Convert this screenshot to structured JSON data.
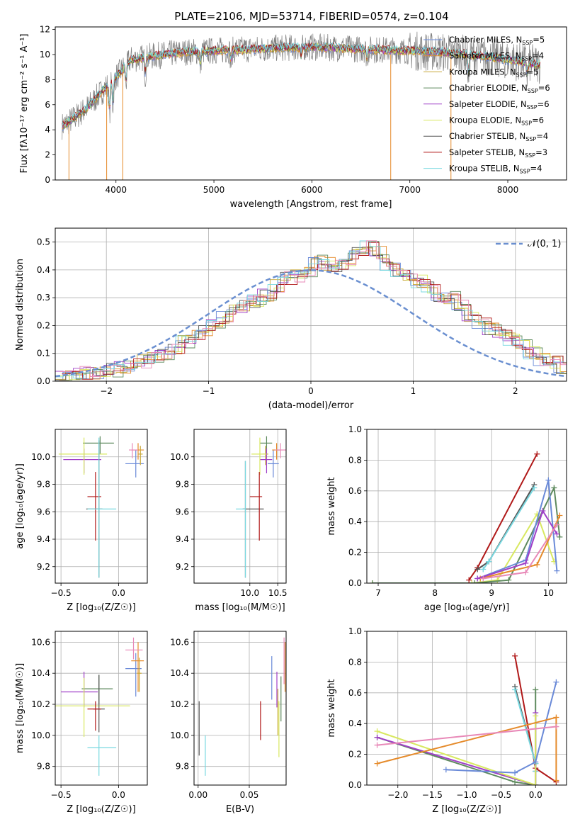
{
  "figure": {
    "title": "PLATE=2106, MJD=53714, FIBERID=0574, z=0.104"
  },
  "colors": {
    "chabrier_miles": "#6a8ad8",
    "salpeter_miles": "#e58a2a",
    "kroupa_miles": "#c8a838",
    "chabrier_elodie": "#5e8a5e",
    "salpeter_elodie": "#a040c8",
    "kroupa_elodie": "#d8e860",
    "chabrier_stelib": "#555555",
    "salpeter_stelib": "#b01818",
    "kroupa_stelib": "#78d8e0",
    "pink": "#e889b8",
    "data": "#808080",
    "grid": "#b0b0b0",
    "gauss": "#6a8fd0"
  },
  "chart_data": [
    {
      "id": "spectrum",
      "type": "line",
      "title": "PLATE=2106, MJD=53714, FIBERID=0574, z=0.104",
      "xlabel": "wavelength [Angstrom, rest frame]",
      "ylabel": "Flux [fλ10⁻¹⁷ erg cm⁻² s⁻¹ A⁻¹]",
      "xlim": [
        3380,
        8600
      ],
      "ylim": [
        0,
        12.2
      ],
      "xticks": [
        4000,
        5000,
        6000,
        7000,
        8000
      ],
      "yticks": [
        0,
        2,
        4,
        6,
        8,
        10,
        12
      ],
      "grid": false,
      "legend": "right",
      "continuum": {
        "x": [
          3450,
          3550,
          3700,
          3850,
          4000,
          4150,
          4400,
          4700,
          5000,
          5300,
          5600,
          6000,
          6300,
          6600,
          7000,
          7300,
          7600,
          8000,
          8300
        ],
        "y": [
          4.3,
          4.8,
          5.7,
          7.0,
          8.2,
          9.6,
          9.9,
          10.2,
          10.3,
          10.4,
          10.5,
          10.6,
          10.5,
          10.4,
          10.3,
          10.2,
          10.0,
          9.6,
          9.2
        ]
      },
      "series": [
        {
          "name": "Chabrier MILES, N",
          "sub": "SSP",
          "suffix": "=5"
        },
        {
          "name": "Salpeter MILES, N",
          "sub": "SSP",
          "suffix": "=4"
        },
        {
          "name": "Kroupa MILES, N",
          "sub": "SSP",
          "suffix": "=5"
        },
        {
          "name": "Chabrier ELODIE, N",
          "sub": "SSP",
          "suffix": "=6"
        },
        {
          "name": "Salpeter ELODIE, N",
          "sub": "SSP",
          "suffix": "=6"
        },
        {
          "name": "Kroupa ELODIE, N",
          "sub": "SSP",
          "suffix": "=6"
        },
        {
          "name": "Chabrier STELIB, N",
          "sub": "SSP",
          "suffix": "=4"
        },
        {
          "name": "Salpeter STELIB, N",
          "sub": "SSP",
          "suffix": "=3"
        },
        {
          "name": "Kroupa STELIB, N",
          "sub": "SSP",
          "suffix": "=4"
        }
      ]
    },
    {
      "id": "residuals",
      "type": "line",
      "xlabel": "(data-model)/error",
      "ylabel": "Normed distribution",
      "xlim": [
        -2.5,
        2.5
      ],
      "ylim": [
        0,
        0.55
      ],
      "xticks": [
        -2,
        -1,
        0,
        1,
        2
      ],
      "yticks": [
        0.0,
        0.1,
        0.2,
        0.3,
        0.4,
        0.5
      ],
      "grid": true,
      "legend": "top-right",
      "gaussian_label": "𝒩(0, 1)",
      "bin_width": 0.1,
      "hist_base": [
        0.02,
        0.02,
        0.03,
        0.03,
        0.03,
        0.04,
        0.05,
        0.06,
        0.07,
        0.08,
        0.1,
        0.12,
        0.14,
        0.16,
        0.18,
        0.2,
        0.23,
        0.26,
        0.27,
        0.29,
        0.31,
        0.34,
        0.37,
        0.38,
        0.4,
        0.43,
        0.42,
        0.41,
        0.44,
        0.46,
        0.48,
        0.46,
        0.42,
        0.4,
        0.38,
        0.36,
        0.34,
        0.31,
        0.3,
        0.27,
        0.23,
        0.21,
        0.19,
        0.17,
        0.15,
        0.13,
        0.1,
        0.08,
        0.07,
        0.05
      ]
    },
    {
      "id": "z_age",
      "type": "scatter",
      "xlabel": "Z [log₁₀(Z/Z☉)]",
      "ylabel": "age  [log₁₀(age/yr)]",
      "xlim": [
        -0.55,
        0.25
      ],
      "ylim": [
        9.08,
        10.2
      ],
      "xticks": [
        -0.5,
        0.0
      ],
      "yticks": [
        9.2,
        9.4,
        9.6,
        9.8,
        10.0
      ],
      "grid": true,
      "points": [
        {
          "c": "chabrier_miles",
          "x": 0.15,
          "xe": [
            0.09,
            0.07
          ],
          "y": 9.95,
          "ye": [
            0.1,
            0.1
          ]
        },
        {
          "c": "salpeter_miles",
          "x": 0.17,
          "xe": [
            0.06,
            0.05
          ],
          "y": 10.05,
          "ye": [
            0.07,
            0.05
          ]
        },
        {
          "c": "kroupa_miles",
          "x": 0.19,
          "xe": [
            0.02,
            0.02
          ],
          "y": 10.02,
          "ye": [
            0.08,
            0.06
          ]
        },
        {
          "c": "chabrier_elodie",
          "x": -0.16,
          "xe": [
            0.15,
            0.12
          ],
          "y": 10.1,
          "ye": [
            0.08,
            0.05
          ]
        },
        {
          "c": "salpeter_elodie",
          "x": -0.3,
          "xe": [
            0.18,
            0.15
          ],
          "y": 9.98,
          "ye": [
            0.1,
            0.08
          ]
        },
        {
          "c": "kroupa_elodie",
          "x": -0.3,
          "xe": [
            0.22,
            0.2
          ],
          "y": 10.02,
          "ye": [
            0.15,
            0.12
          ]
        },
        {
          "c": "chabrier_stelib",
          "x": -0.17,
          "xe": [
            0.11,
            0.03
          ],
          "y": 9.62,
          "ye": [
            0.5,
            0.5
          ]
        },
        {
          "c": "salpeter_stelib",
          "x": -0.2,
          "xe": [
            0.07,
            0.05
          ],
          "y": 9.71,
          "ye": [
            0.32,
            0.18
          ]
        },
        {
          "c": "kroupa_stelib",
          "x": -0.17,
          "xe": [
            0.1,
            0.15
          ],
          "y": 9.62,
          "ye": [
            0.5,
            0.52
          ]
        },
        {
          "c": "pink",
          "x": 0.12,
          "xe": [
            0.03,
            0.05
          ],
          "y": 10.05,
          "ye": [
            0.06,
            0.05
          ]
        }
      ]
    },
    {
      "id": "mass_age",
      "type": "scatter",
      "xlabel": "mass [log₁₀(M/M☉)]",
      "ylabel": "",
      "xlim": [
        9.0,
        10.65
      ],
      "ylim": [
        9.08,
        10.2
      ],
      "xticks": [
        10.0,
        10.5
      ],
      "yticks": [
        9.2,
        9.4,
        9.6,
        9.8,
        10.0
      ],
      "grid": true,
      "points": [
        {
          "c": "chabrier_miles",
          "x": 10.42,
          "xe": [
            0.1,
            0.1
          ],
          "y": 9.95,
          "ye": [
            0.1,
            0.1
          ]
        },
        {
          "c": "salpeter_miles",
          "x": 10.48,
          "xe": [
            0.08,
            0.06
          ],
          "y": 10.05,
          "ye": [
            0.07,
            0.05
          ]
        },
        {
          "c": "kroupa_miles",
          "x": 10.28,
          "xe": [
            0.05,
            0.05
          ],
          "y": 10.02,
          "ye": [
            0.08,
            0.06
          ]
        },
        {
          "c": "chabrier_elodie",
          "x": 10.3,
          "xe": [
            0.12,
            0.1
          ],
          "y": 10.1,
          "ye": [
            0.08,
            0.05
          ]
        },
        {
          "c": "salpeter_elodie",
          "x": 10.3,
          "xe": [
            0.12,
            0.1
          ],
          "y": 9.98,
          "ye": [
            0.1,
            0.08
          ]
        },
        {
          "c": "kroupa_elodie",
          "x": 10.18,
          "xe": [
            0.15,
            0.12
          ],
          "y": 10.02,
          "ye": [
            0.15,
            0.12
          ]
        },
        {
          "c": "chabrier_stelib",
          "x": 9.92,
          "xe": [
            0.05,
            0.33
          ],
          "y": 9.62,
          "ye": [
            0.5,
            0.35
          ]
        },
        {
          "c": "salpeter_stelib",
          "x": 10.17,
          "xe": [
            0.17,
            0.05
          ],
          "y": 9.71,
          "ye": [
            0.32,
            0.18
          ]
        },
        {
          "c": "kroupa_stelib",
          "x": 9.92,
          "xe": [
            0.17,
            0.0
          ],
          "y": 9.62,
          "ye": [
            0.5,
            0.35
          ]
        },
        {
          "c": "pink",
          "x": 10.55,
          "xe": [
            0.1,
            0.1
          ],
          "y": 10.05,
          "ye": [
            0.06,
            0.05
          ]
        }
      ]
    },
    {
      "id": "age_weight",
      "type": "line",
      "xlabel": "age  [log₁₀(age/yr)]",
      "ylabel": "mass weight",
      "xlim": [
        6.8,
        10.32
      ],
      "ylim": [
        0,
        1.0
      ],
      "xticks": [
        7,
        8,
        9,
        10
      ],
      "yticks": [
        0.0,
        0.2,
        0.4,
        0.6,
        0.8,
        1.0
      ],
      "grid": true,
      "series": [
        {
          "c": "kroupa_elodie",
          "x": [
            6.9,
            8.65,
            9.1,
            9.8,
            10.1
          ],
          "y": [
            0.0,
            0.0,
            0.02,
            0.45,
            0.14
          ]
        },
        {
          "c": "chabrier_elodie",
          "x": [
            6.9,
            8.7,
            9.3,
            10.1,
            10.2
          ],
          "y": [
            0.0,
            0.0,
            0.02,
            0.62,
            0.3
          ]
        },
        {
          "c": "salpeter_stelib",
          "x": [
            8.6,
            8.75,
            9.8
          ],
          "y": [
            0.02,
            0.1,
            0.84
          ]
        },
        {
          "c": "chabrier_stelib",
          "x": [
            8.75,
            8.95,
            9.75
          ],
          "y": [
            0.09,
            0.14,
            0.64
          ]
        },
        {
          "c": "kroupa_stelib",
          "x": [
            8.85,
            8.95,
            9.75
          ],
          "y": [
            0.09,
            0.14,
            0.62
          ]
        },
        {
          "c": "chabrier_miles",
          "x": [
            8.75,
            9.6,
            10.0,
            10.15
          ],
          "y": [
            0.03,
            0.15,
            0.67,
            0.08
          ]
        },
        {
          "c": "salpeter_miles",
          "x": [
            8.8,
            9.8,
            10.2
          ],
          "y": [
            0.03,
            0.12,
            0.44
          ]
        },
        {
          "c": "salpeter_elodie",
          "x": [
            8.75,
            9.6,
            9.9,
            10.15
          ],
          "y": [
            0.03,
            0.13,
            0.47,
            0.32
          ]
        },
        {
          "c": "pink",
          "x": [
            8.85,
            9.6,
            10.15
          ],
          "y": [
            0.03,
            0.07,
            0.38
          ]
        }
      ]
    },
    {
      "id": "z_mass",
      "type": "scatter",
      "xlabel": "Z [log₁₀(Z/Z☉)]",
      "ylabel": "mass [log₁₀(M/M☉)]",
      "xlim": [
        -0.55,
        0.25
      ],
      "ylim": [
        9.68,
        10.67
      ],
      "xticks": [
        -0.5,
        0.0
      ],
      "yticks": [
        9.8,
        10.0,
        10.2,
        10.4,
        10.6
      ],
      "grid": true,
      "points": [
        {
          "c": "chabrier_miles",
          "x": 0.15,
          "xe": [
            0.09,
            0.05
          ],
          "y": 10.43,
          "ye": [
            0.18,
            0.1
          ]
        },
        {
          "c": "salpeter_miles",
          "x": 0.17,
          "xe": [
            0.06,
            0.05
          ],
          "y": 10.48,
          "ye": [
            0.2,
            0.12
          ]
        },
        {
          "c": "kroupa_miles",
          "x": 0.18,
          "xe": [
            0.02,
            0.02
          ],
          "y": 10.4,
          "ye": [
            0.12,
            0.1
          ]
        },
        {
          "c": "chabrier_elodie",
          "x": -0.17,
          "xe": [
            0.15,
            0.12
          ],
          "y": 10.3,
          "ye": [
            0.1,
            0.09
          ]
        },
        {
          "c": "salpeter_elodie",
          "x": -0.3,
          "xe": [
            0.2,
            0.12
          ],
          "y": 10.28,
          "ye": [
            0.1,
            0.13
          ]
        },
        {
          "c": "kroupa_elodie",
          "x": -0.3,
          "xe": [
            0.25,
            0.4
          ],
          "y": 10.19,
          "ye": [
            0.2,
            0.18
          ]
        },
        {
          "c": "chabrier_stelib",
          "x": -0.17,
          "xe": [
            0.05,
            0.05
          ],
          "y": 10.17,
          "ye": [
            0.15,
            0.22
          ]
        },
        {
          "c": "salpeter_stelib",
          "x": -0.2,
          "xe": [
            0.07,
            0.05
          ],
          "y": 10.17,
          "ye": [
            0.14,
            0.05
          ]
        },
        {
          "c": "kroupa_stelib",
          "x": -0.17,
          "xe": [
            0.1,
            0.15
          ],
          "y": 9.92,
          "ye": [
            0.18,
            0.08
          ]
        },
        {
          "c": "pink",
          "x": 0.13,
          "xe": [
            0.07,
            0.08
          ],
          "y": 10.55,
          "ye": [
            0.06,
            0.08
          ]
        }
      ]
    },
    {
      "id": "ebv_mass",
      "type": "scatter",
      "xlabel": "E(B-V)",
      "ylabel": "",
      "xlim": [
        -0.004,
        0.086
      ],
      "ylim": [
        9.68,
        10.67
      ],
      "xticks": [
        0.0,
        0.05
      ],
      "yticks": [
        9.8,
        10.0,
        10.2,
        10.4,
        10.6
      ],
      "grid": true,
      "points": [
        {
          "c": "chabrier_stelib",
          "x": 0.001,
          "y": 10.05,
          "ye": [
            0.18,
            0.17
          ]
        },
        {
          "c": "kroupa_stelib",
          "x": 0.007,
          "y": 9.92,
          "ye": [
            0.18,
            0.08
          ]
        },
        {
          "c": "salpeter_stelib",
          "x": 0.061,
          "y": 10.09,
          "ye": [
            0.12,
            0.13
          ]
        },
        {
          "c": "chabrier_miles",
          "x": 0.072,
          "y": 10.36,
          "ye": [
            0.13,
            0.15
          ]
        },
        {
          "c": "salpeter_elodie",
          "x": 0.077,
          "y": 10.28,
          "ye": [
            0.1,
            0.13
          ]
        },
        {
          "c": "kroupa_miles",
          "x": 0.078,
          "y": 10.15,
          "ye": [
            0.15,
            0.15
          ]
        },
        {
          "c": "kroupa_elodie",
          "x": 0.079,
          "y": 10.0,
          "ye": [
            0.14,
            0.22
          ]
        },
        {
          "c": "chabrier_elodie",
          "x": 0.081,
          "y": 10.2,
          "ye": [
            0.11,
            0.18
          ]
        },
        {
          "c": "salpeter_miles",
          "x": 0.085,
          "y": 10.48,
          "ye": [
            0.2,
            0.12
          ]
        },
        {
          "c": "pink",
          "x": 0.084,
          "y": 10.48,
          "ye": [
            0.15,
            0.15
          ]
        }
      ]
    },
    {
      "id": "z_weight",
      "type": "line",
      "xlabel": "Z [log₁₀(Z/Z☉)]",
      "ylabel": "mass weight",
      "xlim": [
        -2.45,
        0.45
      ],
      "ylim": [
        0,
        1.0
      ],
      "xticks": [
        -2.0,
        -1.5,
        -1.0,
        -0.5,
        0.0
      ],
      "yticks": [
        0.0,
        0.2,
        0.4,
        0.6,
        0.8,
        1.0
      ],
      "grid": true,
      "series": [
        {
          "c": "salpeter_stelib",
          "x": [
            -0.3,
            0.0,
            0.3
          ],
          "y": [
            0.84,
            0.11,
            0.02
          ]
        },
        {
          "c": "chabrier_stelib",
          "x": [
            -0.3,
            0.0,
            0.0
          ],
          "y": [
            0.64,
            0.14,
            0.09
          ]
        },
        {
          "c": "kroupa_stelib",
          "x": [
            -0.3,
            0.0,
            0.0
          ],
          "y": [
            0.62,
            0.14,
            0.09
          ]
        },
        {
          "c": "chabrier_elodie",
          "x": [
            -2.3,
            -0.3,
            0.0,
            0.0
          ],
          "y": [
            0.31,
            0.02,
            0.0,
            0.62
          ]
        },
        {
          "c": "salpeter_elodie",
          "x": [
            -2.3,
            0.0,
            0.0
          ],
          "y": [
            0.31,
            0.0,
            0.47
          ]
        },
        {
          "c": "kroupa_elodie",
          "x": [
            -2.3,
            0.0,
            0.0
          ],
          "y": [
            0.35,
            0.0,
            0.45
          ]
        },
        {
          "c": "chabrier_miles",
          "x": [
            -1.3,
            -0.3,
            0.0,
            0.3
          ],
          "y": [
            0.1,
            0.08,
            0.15,
            0.67
          ]
        },
        {
          "c": "salpeter_miles",
          "x": [
            -2.3,
            0.3,
            0.3
          ],
          "y": [
            0.14,
            0.44,
            0.03
          ]
        },
        {
          "c": "pink",
          "x": [
            -2.3,
            0.3
          ],
          "y": [
            0.26,
            0.38
          ]
        }
      ]
    }
  ]
}
